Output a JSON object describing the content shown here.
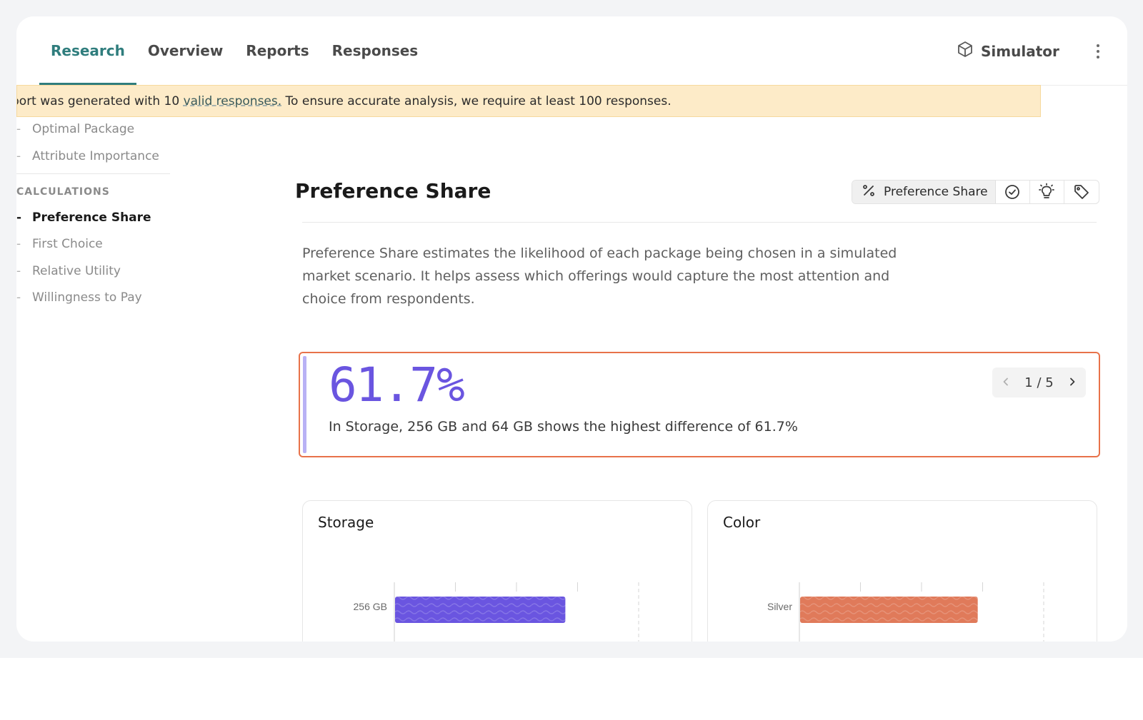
{
  "header": {
    "tabs": [
      {
        "label": "Research",
        "active": true
      },
      {
        "label": "Overview",
        "active": false
      },
      {
        "label": "Reports",
        "active": false
      },
      {
        "label": "Responses",
        "active": false
      }
    ],
    "simulator_label": "Simulator",
    "simulator_icon": "cube-icon",
    "menu_icon": "kebab-menu-icon",
    "accent_color": "#2f7d7d"
  },
  "banner": {
    "text_before": "port was generated with 10 ",
    "link_text": "valid responses.",
    "text_after": " To ensure accurate analysis, we require at least 100 responses."
  },
  "sidebar": {
    "items_top": [
      {
        "label": "Optimal Package"
      },
      {
        "label": "Attribute Importance"
      }
    ],
    "section_heading": "CALCULATIONS",
    "items": [
      {
        "label": "Preference Share",
        "active": true
      },
      {
        "label": "First Choice",
        "active": false
      },
      {
        "label": "Relative Utility",
        "active": false
      },
      {
        "label": "Willingness to Pay",
        "active": false
      }
    ]
  },
  "main": {
    "title": "Preference Share",
    "toolbar": {
      "main_label": "Preference Share",
      "main_icon": "percent-icon",
      "icons": [
        "check-circle-icon",
        "lightbulb-icon",
        "tag-icon"
      ]
    },
    "description": "Preference Share estimates the likelihood of each package being chosen in a simulated market scenario. It helps assess which offerings would capture the most attention and choice from respondents.",
    "insight": {
      "value": "61.7%",
      "text": "In Storage, 256 GB and 64 GB shows the highest difference of 61.7%",
      "pager": "1 / 5",
      "accent_color": "#6a55e0",
      "border_color": "#e8724a"
    }
  },
  "chart_data": [
    {
      "type": "bar",
      "title": "Storage",
      "categories": [
        "256 GB"
      ],
      "values": [
        0.7
      ],
      "xlim": [
        0,
        1
      ],
      "color": "#6a55e0"
    },
    {
      "type": "bar",
      "title": "Color",
      "categories": [
        "Silver"
      ],
      "values": [
        0.73
      ],
      "xlim": [
        0,
        1
      ],
      "color": "#e07a5a"
    }
  ]
}
